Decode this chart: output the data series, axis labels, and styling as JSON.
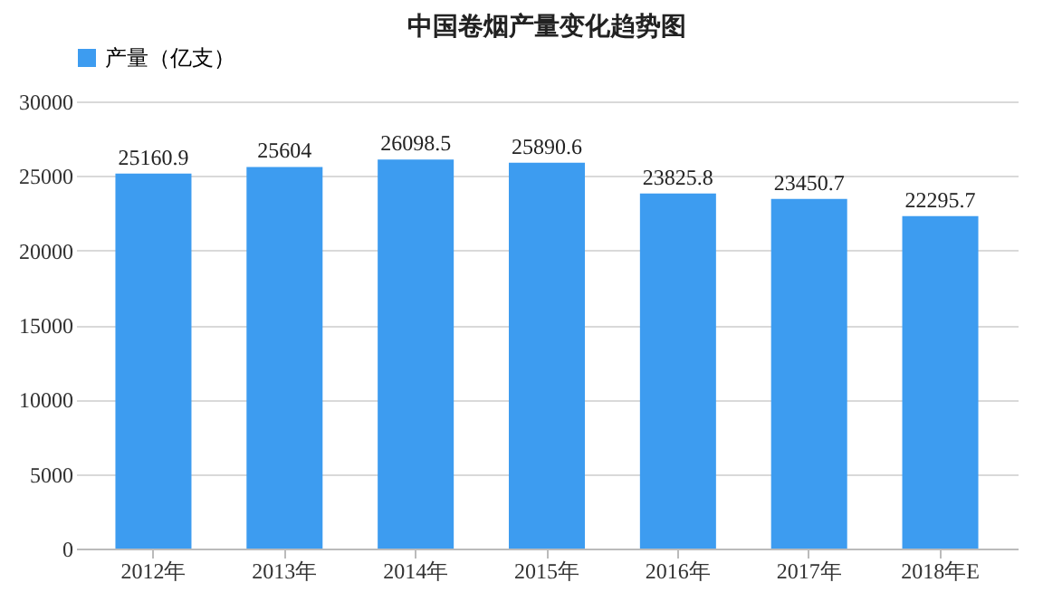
{
  "chart_data": {
    "type": "bar",
    "title": "中国卷烟产量变化趋势图",
    "categories": [
      "2012年",
      "2013年",
      "2014年",
      "2015年",
      "2016年",
      "2017年",
      "2018年E"
    ],
    "series": [
      {
        "name": "产量（亿支）",
        "color": "#3d9cf0",
        "values": [
          25160.9,
          25604,
          26098.5,
          25890.6,
          23825.8,
          23450.7,
          22295.7
        ]
      }
    ],
    "ylim": [
      0,
      30000
    ],
    "yticks": [
      0,
      5000,
      10000,
      15000,
      20000,
      25000,
      30000
    ],
    "grid": "y",
    "legend": "top",
    "data_labels": true
  }
}
